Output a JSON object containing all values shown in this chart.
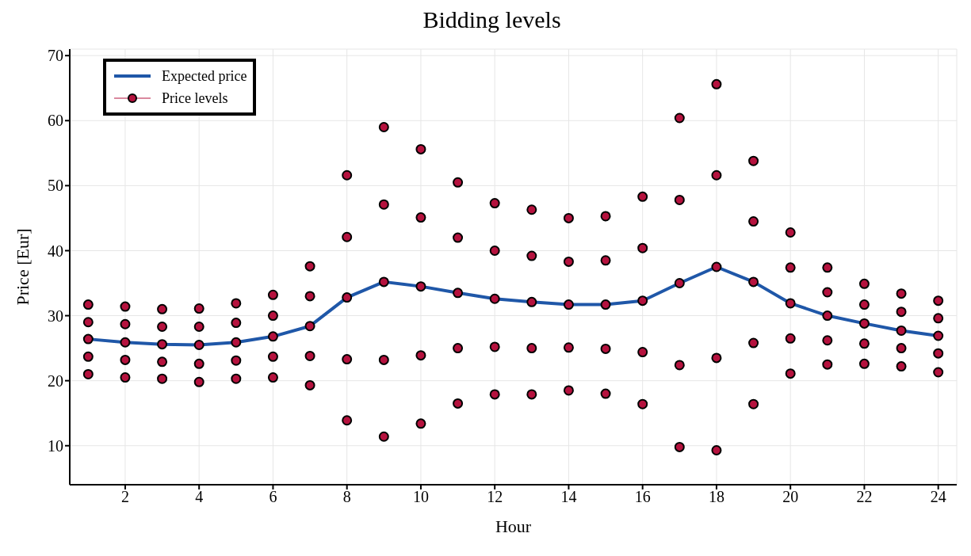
{
  "chart_data": {
    "type": "line",
    "title": "Bidding levels",
    "xlabel": "Hour",
    "ylabel": "Price [Eur]",
    "xlim": [
      0.5,
      24.5
    ],
    "xticks": [
      2,
      4,
      6,
      8,
      10,
      12,
      14,
      16,
      18,
      20,
      22,
      24
    ],
    "ylim": [
      4,
      71
    ],
    "yticks": [
      10,
      20,
      30,
      40,
      50,
      60,
      70
    ],
    "grid": true,
    "legend": "top left",
    "series": [
      {
        "name": "Expected price",
        "color": "#1f57a8",
        "marker": "none",
        "line_style": "solid",
        "x": [
          1,
          2,
          3,
          4,
          5,
          6,
          7,
          8,
          9,
          10,
          11,
          12,
          13,
          14,
          15,
          16,
          17,
          18,
          19,
          20,
          21,
          22,
          23,
          24
        ],
        "values": [
          26.4,
          25.9,
          25.6,
          25.5,
          25.9,
          26.8,
          28.4,
          32.8,
          35.2,
          34.5,
          33.5,
          32.6,
          32.1,
          31.7,
          31.7,
          32.3,
          35.0,
          37.5,
          35.2,
          31.9,
          30.0,
          28.8,
          27.7,
          26.9
        ]
      },
      {
        "name": "Price levels",
        "type": "scatter",
        "color": "#b5123e",
        "marker": "circle",
        "x": [
          1,
          1,
          1,
          1,
          1,
          2,
          2,
          2,
          2,
          2,
          3,
          3,
          3,
          3,
          3,
          4,
          4,
          4,
          4,
          4,
          5,
          5,
          5,
          5,
          5,
          6,
          6,
          6,
          6,
          6,
          7,
          7,
          7,
          7,
          7,
          8,
          8,
          8,
          8,
          8,
          9,
          9,
          9,
          9,
          9,
          10,
          10,
          10,
          10,
          10,
          11,
          11,
          11,
          11,
          11,
          12,
          12,
          12,
          12,
          12,
          13,
          13,
          13,
          13,
          13,
          14,
          14,
          14,
          14,
          14,
          15,
          15,
          15,
          15,
          15,
          16,
          16,
          16,
          16,
          16,
          17,
          17,
          17,
          17,
          17,
          18,
          18,
          18,
          18,
          18,
          19,
          19,
          19,
          19,
          19,
          20,
          20,
          20,
          20,
          20,
          21,
          21,
          21,
          21,
          21,
          22,
          22,
          22,
          22,
          22,
          23,
          23,
          23,
          23,
          23,
          24,
          24,
          24,
          24,
          24
        ],
        "values": [
          31.7,
          29.0,
          26.4,
          23.7,
          21.0,
          31.4,
          28.7,
          25.9,
          23.2,
          20.5,
          31.0,
          28.3,
          25.6,
          22.9,
          20.3,
          31.1,
          28.3,
          25.5,
          22.6,
          19.8,
          31.9,
          28.9,
          25.9,
          23.1,
          20.3,
          33.2,
          30.0,
          26.8,
          23.7,
          20.5,
          37.6,
          33.0,
          28.4,
          23.8,
          19.3,
          51.6,
          42.1,
          32.8,
          23.3,
          13.9,
          59.0,
          47.1,
          35.2,
          23.2,
          11.4,
          55.6,
          45.1,
          34.5,
          23.9,
          13.4,
          50.5,
          42.0,
          33.5,
          25.0,
          16.5,
          47.3,
          40.0,
          32.6,
          25.2,
          17.9,
          46.3,
          39.2,
          32.1,
          25.0,
          17.9,
          45.0,
          38.3,
          31.7,
          25.1,
          18.5,
          45.3,
          38.5,
          31.7,
          24.9,
          18.0,
          48.3,
          40.4,
          32.3,
          24.4,
          16.4,
          60.4,
          47.8,
          35.0,
          22.4,
          9.8,
          65.6,
          51.6,
          37.5,
          23.5,
          9.3,
          53.8,
          44.5,
          35.2,
          25.8,
          16.4,
          42.8,
          37.4,
          31.9,
          26.5,
          21.1,
          37.4,
          33.6,
          30.0,
          26.2,
          22.5,
          34.9,
          31.7,
          28.8,
          25.7,
          22.6,
          33.4,
          30.6,
          27.7,
          25.0,
          22.2,
          32.3,
          29.6,
          26.9,
          24.2,
          21.3
        ]
      }
    ]
  }
}
